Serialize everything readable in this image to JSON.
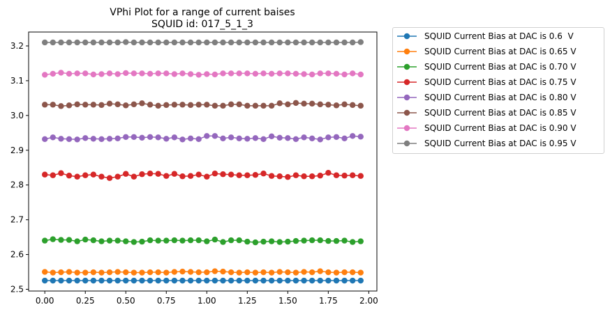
{
  "chart_data": {
    "type": "line",
    "title": "VPhi Plot for a range of current baises",
    "subtitle": "SQUID id: 017_5_1_3",
    "xlabel": "",
    "ylabel": "",
    "xlim": [
      -0.1,
      2.05
    ],
    "ylim": [
      2.495,
      3.24
    ],
    "x_ticks": [
      0.0,
      0.25,
      0.5,
      0.75,
      1.0,
      1.25,
      1.5,
      1.75,
      2.0
    ],
    "x_tick_labels": [
      "0.00",
      "0.25",
      "0.50",
      "0.75",
      "1.00",
      "1.25",
      "1.50",
      "1.75",
      "2.00"
    ],
    "y_ticks": [
      2.5,
      2.6,
      2.7,
      2.8,
      2.9,
      3.0,
      3.1,
      3.2
    ],
    "y_tick_labels": [
      "2.5",
      "2.6",
      "2.7",
      "2.8",
      "2.9",
      "3.0",
      "3.1",
      "3.2"
    ],
    "grid": false,
    "legend_placement": "outside-right",
    "x": [
      0.0,
      0.05,
      0.1,
      0.15,
      0.2,
      0.25,
      0.3,
      0.35,
      0.4,
      0.45,
      0.5,
      0.55,
      0.6,
      0.65,
      0.7,
      0.75,
      0.8,
      0.85,
      0.9,
      0.95,
      1.0,
      1.05,
      1.1,
      1.15,
      1.2,
      1.25,
      1.3,
      1.35,
      1.4,
      1.45,
      1.5,
      1.55,
      1.6,
      1.65,
      1.7,
      1.75,
      1.8,
      1.85,
      1.9,
      1.95
    ],
    "series": [
      {
        "name": "SQUID Current Bias at DAC is 0.6  V",
        "color": "#1f77b4",
        "values": [
          2.525,
          2.525,
          2.525,
          2.525,
          2.525,
          2.525,
          2.525,
          2.525,
          2.525,
          2.525,
          2.525,
          2.525,
          2.525,
          2.525,
          2.525,
          2.525,
          2.525,
          2.525,
          2.525,
          2.525,
          2.525,
          2.525,
          2.525,
          2.525,
          2.525,
          2.525,
          2.525,
          2.525,
          2.525,
          2.525,
          2.525,
          2.525,
          2.525,
          2.525,
          2.525,
          2.525,
          2.525,
          2.525,
          2.525,
          2.525
        ]
      },
      {
        "name": "SQUID Current Bias at DAC is 0.65 V",
        "color": "#ff7f0e",
        "values": [
          2.55,
          2.548,
          2.549,
          2.55,
          2.548,
          2.548,
          2.549,
          2.548,
          2.549,
          2.55,
          2.549,
          2.548,
          2.548,
          2.549,
          2.549,
          2.548,
          2.55,
          2.551,
          2.55,
          2.549,
          2.549,
          2.552,
          2.551,
          2.549,
          2.548,
          2.549,
          2.548,
          2.549,
          2.548,
          2.55,
          2.549,
          2.548,
          2.55,
          2.549,
          2.552,
          2.549,
          2.548,
          2.549,
          2.549,
          2.548
        ]
      },
      {
        "name": "SQUID Current Bias at DAC is 0.70 V",
        "color": "#2ca02c",
        "values": [
          2.64,
          2.644,
          2.642,
          2.642,
          2.638,
          2.643,
          2.641,
          2.638,
          2.64,
          2.64,
          2.638,
          2.636,
          2.637,
          2.641,
          2.64,
          2.64,
          2.641,
          2.64,
          2.641,
          2.641,
          2.638,
          2.643,
          2.636,
          2.641,
          2.641,
          2.637,
          2.635,
          2.637,
          2.638,
          2.636,
          2.637,
          2.639,
          2.64,
          2.641,
          2.641,
          2.639,
          2.639,
          2.64,
          2.636,
          2.638
        ]
      },
      {
        "name": "SQUID Current Bias at DAC is 0.75 V",
        "color": "#d62728",
        "values": [
          2.83,
          2.828,
          2.834,
          2.827,
          2.824,
          2.828,
          2.83,
          2.824,
          2.82,
          2.824,
          2.832,
          2.824,
          2.831,
          2.833,
          2.832,
          2.826,
          2.832,
          2.825,
          2.826,
          2.83,
          2.824,
          2.833,
          2.831,
          2.83,
          2.828,
          2.828,
          2.829,
          2.833,
          2.826,
          2.825,
          2.823,
          2.828,
          2.825,
          2.825,
          2.827,
          2.835,
          2.828,
          2.827,
          2.828,
          2.826
        ]
      },
      {
        "name": "SQUID Current Bias at DAC is 0.80 V",
        "color": "#9467bd",
        "values": [
          2.932,
          2.937,
          2.933,
          2.932,
          2.931,
          2.935,
          2.933,
          2.932,
          2.933,
          2.934,
          2.938,
          2.938,
          2.936,
          2.938,
          2.937,
          2.933,
          2.937,
          2.931,
          2.934,
          2.932,
          2.941,
          2.941,
          2.934,
          2.937,
          2.934,
          2.933,
          2.935,
          2.932,
          2.94,
          2.936,
          2.935,
          2.932,
          2.937,
          2.934,
          2.931,
          2.937,
          2.938,
          2.934,
          2.941,
          2.939
        ]
      },
      {
        "name": "SQUID Current Bias at DAC is 0.85 V",
        "color": "#8c564b",
        "values": [
          3.031,
          3.031,
          3.027,
          3.029,
          3.032,
          3.031,
          3.031,
          3.03,
          3.034,
          3.032,
          3.029,
          3.032,
          3.035,
          3.031,
          3.028,
          3.03,
          3.031,
          3.031,
          3.03,
          3.031,
          3.031,
          3.028,
          3.028,
          3.032,
          3.032,
          3.028,
          3.028,
          3.028,
          3.028,
          3.035,
          3.032,
          3.036,
          3.034,
          3.034,
          3.032,
          3.031,
          3.029,
          3.032,
          3.03,
          3.028
        ]
      },
      {
        "name": "SQUID Current Bias at DAC is 0.90 V",
        "color": "#e377c2",
        "values": [
          3.117,
          3.12,
          3.123,
          3.12,
          3.121,
          3.121,
          3.118,
          3.119,
          3.121,
          3.119,
          3.122,
          3.121,
          3.121,
          3.12,
          3.121,
          3.121,
          3.119,
          3.121,
          3.119,
          3.117,
          3.119,
          3.118,
          3.121,
          3.121,
          3.121,
          3.121,
          3.12,
          3.121,
          3.12,
          3.121,
          3.121,
          3.12,
          3.119,
          3.118,
          3.121,
          3.121,
          3.12,
          3.118,
          3.121,
          3.118
        ]
      },
      {
        "name": "SQUID Current Bias at DAC is 0.95 V",
        "color": "#7f7f7f",
        "values": [
          3.21,
          3.21,
          3.21,
          3.21,
          3.21,
          3.21,
          3.21,
          3.21,
          3.21,
          3.21,
          3.211,
          3.21,
          3.21,
          3.21,
          3.21,
          3.21,
          3.21,
          3.21,
          3.21,
          3.21,
          3.21,
          3.21,
          3.21,
          3.21,
          3.21,
          3.21,
          3.21,
          3.21,
          3.21,
          3.21,
          3.21,
          3.21,
          3.21,
          3.21,
          3.21,
          3.21,
          3.21,
          3.21,
          3.21,
          3.211
        ]
      }
    ]
  }
}
